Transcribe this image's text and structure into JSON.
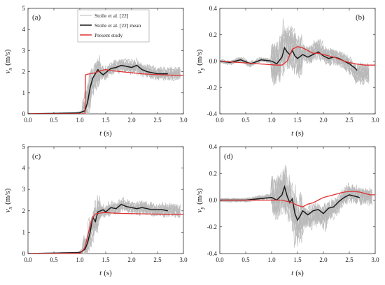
{
  "figure": {
    "panels": [
      {
        "label": "(a)",
        "ylabel_main": "v",
        "ylabel_sub": "x",
        "ylabel_unit": "(m/s)",
        "xlabel_main": "t",
        "xlabel_unit": "(s)",
        "xticks": [
          "0.0",
          "0.5",
          "1.0",
          "1.5",
          "2.0",
          "2.5",
          "3.0"
        ],
        "yticks": [
          "0",
          "1",
          "2",
          "3",
          "4",
          "5"
        ]
      },
      {
        "label": "(b)",
        "ylabel_main": "v",
        "ylabel_sub": "y",
        "ylabel_unit": "(m/s)",
        "xlabel_main": "t",
        "xlabel_unit": "(s)",
        "xticks": [
          "0.0",
          "0.5",
          "1.0",
          "1.5",
          "2.0",
          "2.5",
          "3.0"
        ],
        "yticks": [
          "-0.4",
          "-0.2",
          "0.0",
          "0.2",
          "0.4"
        ]
      },
      {
        "label": "(c)",
        "ylabel_main": "v",
        "ylabel_sub": "x",
        "ylabel_unit": "(m/s)",
        "xlabel_main": "t",
        "xlabel_unit": "(s)",
        "xticks": [
          "0.0",
          "0.5",
          "1.0",
          "1.5",
          "2.0",
          "2.5",
          "3.0"
        ],
        "yticks": [
          "0",
          "1",
          "2",
          "3",
          "4",
          "5"
        ]
      },
      {
        "label": "(d)",
        "ylabel_main": "v",
        "ylabel_sub": "y",
        "ylabel_unit": "(m/s)",
        "xlabel_main": "t",
        "xlabel_unit": "(s)",
        "xticks": [
          "0.0",
          "0.5",
          "1.0",
          "1.5",
          "2.0",
          "2.5",
          "3.0"
        ],
        "yticks": [
          "-0.4",
          "-0.2",
          "0.0",
          "0.2",
          "0.4"
        ]
      }
    ],
    "legend": {
      "entries": [
        "Stolle et al. [22]",
        "Stolle et al. [22] mean",
        "Present study"
      ]
    }
  },
  "chart_data": [
    {
      "type": "line",
      "panel": "(a)",
      "xlim": [
        0,
        3.0
      ],
      "ylim": [
        0,
        5
      ],
      "grid": false,
      "legend_position": "top-left",
      "colors": {
        "trials": "#b9b9b9",
        "mean": "#1a1a1a",
        "present": "#e03030"
      },
      "series": [
        {
          "name": "Stolle et al. [22] mean",
          "x": [
            0.0,
            0.5,
            1.0,
            1.1,
            1.15,
            1.2,
            1.25,
            1.3,
            1.35,
            1.4,
            1.45,
            1.5,
            1.6,
            1.7,
            1.8,
            1.9,
            2.0,
            2.1,
            2.2,
            2.3,
            2.4,
            2.5,
            2.6,
            2.7
          ],
          "y": [
            0.0,
            0.02,
            0.05,
            0.15,
            0.55,
            1.25,
            1.7,
            1.9,
            2.1,
            1.95,
            1.85,
            1.95,
            2.15,
            2.2,
            2.3,
            2.25,
            2.2,
            2.3,
            2.1,
            2.0,
            1.95,
            1.9,
            1.9,
            1.9
          ]
        },
        {
          "name": "Present study",
          "x": [
            0.0,
            1.1,
            1.11,
            1.15,
            1.2,
            1.3,
            1.4,
            1.5,
            1.6,
            1.8,
            2.0,
            2.2,
            2.4,
            2.6,
            2.8,
            3.0
          ],
          "y": [
            0.0,
            0.0,
            1.85,
            1.88,
            1.9,
            1.95,
            2.05,
            2.1,
            2.05,
            2.0,
            1.95,
            1.9,
            1.87,
            1.85,
            1.83,
            1.82
          ]
        }
      ]
    },
    {
      "type": "line",
      "panel": "(b)",
      "xlim": [
        0,
        3.0
      ],
      "ylim": [
        -0.4,
        0.4
      ],
      "grid": false,
      "colors": {
        "trials": "#b9b9b9",
        "mean": "#1a1a1a",
        "present": "#e03030"
      },
      "series": [
        {
          "name": "Stolle et al. [22] mean",
          "x": [
            0.0,
            0.2,
            0.4,
            0.6,
            0.8,
            1.0,
            1.1,
            1.2,
            1.25,
            1.3,
            1.35,
            1.4,
            1.45,
            1.5,
            1.6,
            1.7,
            1.8,
            1.9,
            2.0,
            2.1,
            2.2,
            2.3,
            2.4,
            2.5,
            2.6,
            2.65
          ],
          "y": [
            0.0,
            -0.01,
            0.01,
            -0.02,
            0.01,
            0.0,
            -0.02,
            0.03,
            0.1,
            0.07,
            0.05,
            0.08,
            0.04,
            0.02,
            0.05,
            0.03,
            0.05,
            0.07,
            0.04,
            0.02,
            0.03,
            0.02,
            0.0,
            -0.02,
            -0.05,
            -0.07
          ]
        },
        {
          "name": "Present study",
          "x": [
            0.0,
            1.1,
            1.2,
            1.3,
            1.4,
            1.5,
            1.6,
            1.7,
            1.8,
            1.9,
            2.0,
            2.2,
            2.4,
            2.6,
            2.8,
            3.0
          ],
          "y": [
            0.0,
            -0.03,
            -0.03,
            0.0,
            0.09,
            0.11,
            0.1,
            0.08,
            0.06,
            0.06,
            0.05,
            0.03,
            0.0,
            -0.02,
            -0.03,
            -0.03
          ]
        }
      ]
    },
    {
      "type": "line",
      "panel": "(c)",
      "xlim": [
        0,
        3.0
      ],
      "ylim": [
        0,
        5
      ],
      "grid": false,
      "colors": {
        "trials": "#b9b9b9",
        "mean": "#1a1a1a",
        "present": "#e03030"
      },
      "series": [
        {
          "name": "Stolle et al. [22] mean",
          "x": [
            0.0,
            0.5,
            1.0,
            1.1,
            1.15,
            1.2,
            1.25,
            1.3,
            1.35,
            1.4,
            1.45,
            1.5,
            1.6,
            1.7,
            1.8,
            1.9,
            2.0,
            2.1,
            2.2,
            2.3,
            2.4,
            2.5,
            2.6,
            2.7
          ],
          "y": [
            0.0,
            0.02,
            0.05,
            0.2,
            0.5,
            1.0,
            1.7,
            1.5,
            1.95,
            2.0,
            2.05,
            1.95,
            2.15,
            2.1,
            2.3,
            2.2,
            2.15,
            2.1,
            2.15,
            2.1,
            2.05,
            2.05,
            2.05,
            2.0
          ]
        },
        {
          "name": "Present study",
          "x": [
            0.0,
            1.0,
            1.05,
            1.1,
            1.15,
            1.2,
            1.25,
            1.3,
            1.4,
            1.5,
            1.6,
            1.8,
            2.0,
            2.2,
            2.4,
            2.6,
            2.8,
            3.0
          ],
          "y": [
            0.0,
            0.02,
            0.1,
            0.3,
            0.8,
            1.3,
            1.7,
            1.85,
            1.9,
            1.92,
            1.9,
            1.88,
            1.87,
            1.86,
            1.85,
            1.84,
            1.84,
            1.84
          ]
        }
      ]
    },
    {
      "type": "line",
      "panel": "(d)",
      "xlim": [
        0,
        3.0
      ],
      "ylim": [
        -0.4,
        0.4
      ],
      "grid": false,
      "colors": {
        "trials": "#b9b9b9",
        "mean": "#1a1a1a",
        "present": "#e03030"
      },
      "series": [
        {
          "name": "Stolle et al. [22] mean",
          "x": [
            0.0,
            0.5,
            1.0,
            1.1,
            1.2,
            1.25,
            1.3,
            1.35,
            1.4,
            1.45,
            1.5,
            1.55,
            1.6,
            1.7,
            1.8,
            1.9,
            2.0,
            2.1,
            2.2,
            2.3,
            2.4,
            2.5,
            2.6,
            2.7
          ],
          "y": [
            0.0,
            0.0,
            0.02,
            0.0,
            0.04,
            0.1,
            0.03,
            -0.02,
            0.01,
            -0.1,
            -0.15,
            -0.12,
            -0.08,
            -0.11,
            -0.08,
            -0.07,
            -0.1,
            -0.06,
            -0.05,
            -0.01,
            0.02,
            0.04,
            0.03,
            0.02
          ]
        },
        {
          "name": "Present study",
          "x": [
            0.0,
            1.0,
            1.2,
            1.4,
            1.5,
            1.6,
            1.7,
            1.8,
            1.9,
            2.0,
            2.1,
            2.2,
            2.3,
            2.4,
            2.5,
            2.6,
            2.7,
            2.8,
            2.9,
            3.0
          ],
          "y": [
            0.0,
            0.0,
            0.0,
            -0.02,
            -0.04,
            -0.05,
            -0.03,
            -0.02,
            0.0,
            0.02,
            0.03,
            0.04,
            0.05,
            0.06,
            0.065,
            0.065,
            0.06,
            0.05,
            0.04,
            0.04
          ]
        }
      ]
    }
  ]
}
